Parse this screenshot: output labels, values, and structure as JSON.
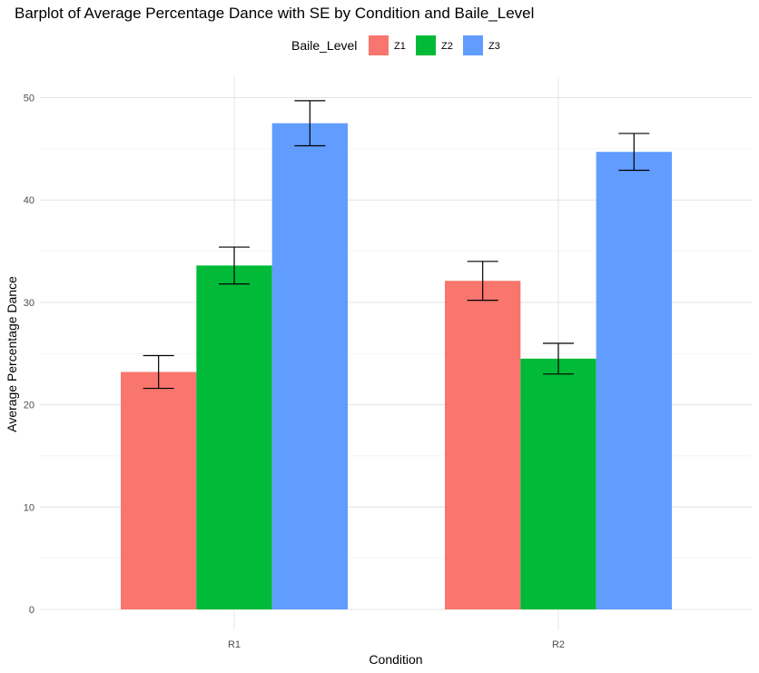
{
  "chart_data": {
    "type": "bar",
    "title": "Barplot of Average Percentage Dance with SE by Condition and Baile_Level",
    "xlabel": "Condition",
    "ylabel": "Average Percentage Dance",
    "categories": [
      "R1",
      "R2"
    ],
    "ylim": [
      0,
      52
    ],
    "yticks": [
      0,
      10,
      20,
      30,
      40,
      50
    ],
    "grid": true,
    "legend": {
      "title": "Baile_Level",
      "position": "top"
    },
    "series": [
      {
        "name": "Z1",
        "color": "#F8766D",
        "values": [
          23.2,
          32.1
        ],
        "se": [
          1.6,
          1.9
        ]
      },
      {
        "name": "Z2",
        "color": "#00BA38",
        "values": [
          33.6,
          24.5
        ],
        "se": [
          1.8,
          1.5
        ]
      },
      {
        "name": "Z3",
        "color": "#619CFF",
        "values": [
          47.5,
          44.7
        ],
        "se": [
          2.2,
          1.8
        ]
      }
    ]
  }
}
